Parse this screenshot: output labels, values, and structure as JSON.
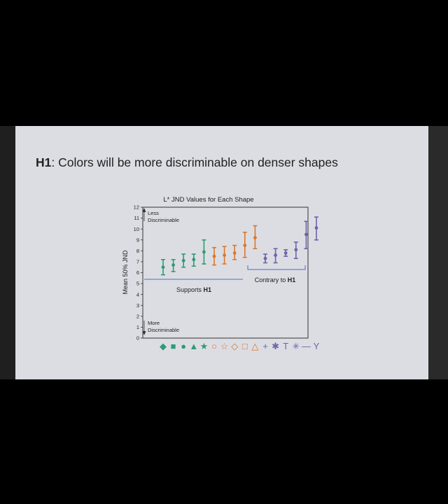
{
  "slide": {
    "title_bold": "H1",
    "title_rest": ": Colors will be more discriminable on denser shapes"
  },
  "colors": {
    "green": "#2e9b73",
    "orange": "#d9782d",
    "purple": "#6f64a8",
    "bracket": "#4a6fc0"
  },
  "chart_data": {
    "type": "scatter",
    "title": "L* JND Values for Each Shape",
    "xlabel": "",
    "ylabel": "Mean 50% JND",
    "ylim": [
      0,
      12
    ],
    "y_ticks": [
      0,
      1,
      2,
      3,
      4,
      5,
      6,
      7,
      8,
      9,
      10,
      11,
      12
    ],
    "grid": false,
    "annotations": {
      "top": [
        "Less",
        "Discriminable"
      ],
      "bottom": [
        "More",
        "Discriminable"
      ],
      "supports_pre": "Supports ",
      "supports_bold": "H1",
      "contrary_pre": "Contrary to ",
      "contrary_bold": "H1"
    },
    "points": [
      {
        "shape": "◆",
        "group": "green",
        "mean": 6.5,
        "low": 5.8,
        "high": 7.2
      },
      {
        "shape": "■",
        "group": "green",
        "mean": 6.7,
        "low": 6.1,
        "high": 7.2
      },
      {
        "shape": "●",
        "group": "green",
        "mean": 7.1,
        "low": 6.5,
        "high": 7.7
      },
      {
        "shape": "▲",
        "group": "green",
        "mean": 7.2,
        "low": 6.6,
        "high": 7.7
      },
      {
        "shape": "★",
        "group": "green",
        "mean": 7.9,
        "low": 6.8,
        "high": 9.0
      },
      {
        "shape": "○",
        "group": "orange",
        "mean": 7.5,
        "low": 6.7,
        "high": 8.3
      },
      {
        "shape": "☆",
        "group": "orange",
        "mean": 7.6,
        "low": 6.8,
        "high": 8.4
      },
      {
        "shape": "◇",
        "group": "orange",
        "mean": 7.8,
        "low": 7.2,
        "high": 8.5
      },
      {
        "shape": "□",
        "group": "orange",
        "mean": 8.5,
        "low": 7.4,
        "high": 9.7
      },
      {
        "shape": "△",
        "group": "orange",
        "mean": 9.2,
        "low": 8.2,
        "high": 10.3
      },
      {
        "shape": "+",
        "group": "purple",
        "mean": 7.3,
        "low": 6.9,
        "high": 7.7
      },
      {
        "shape": "✱",
        "group": "purple",
        "mean": 7.6,
        "low": 6.9,
        "high": 8.2
      },
      {
        "shape": "T",
        "group": "purple",
        "mean": 7.8,
        "low": 7.5,
        "high": 8.1
      },
      {
        "shape": "✳",
        "group": "purple",
        "mean": 8.1,
        "low": 7.3,
        "high": 8.8
      },
      {
        "shape": "—",
        "group": "purple",
        "mean": 9.5,
        "low": 8.2,
        "high": 10.7
      },
      {
        "shape": "Y",
        "group": "purple",
        "mean": 10.1,
        "low": 9.0,
        "high": 11.1
      }
    ]
  }
}
